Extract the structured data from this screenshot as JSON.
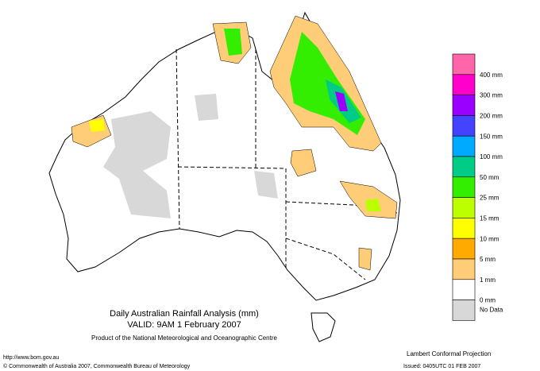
{
  "header": {
    "title": "Daily Australian Rainfall Analysis (mm)",
    "valid": "VALID: 9AM  1 February 2007",
    "product": "Product of the National Meteorological and Oceanographic Centre"
  },
  "footer": {
    "url": "http://www.bom.gov.au",
    "copyright": "© Commonwealth of Australia 2007, Commonwealth Bureau of Meteorology",
    "projection": "Lambert Conformal Projection",
    "issued": "Issued: 0405UTC 01 FEB 2007"
  },
  "legend": {
    "colors": [
      "#ff66aa",
      "#ff00cc",
      "#9900ff",
      "#4444ff",
      "#00aaff",
      "#00cc88",
      "#33ee00",
      "#bbff00",
      "#ffff00",
      "#ffaa00",
      "#ffcc77",
      "#ffffff",
      "#d8d8d8"
    ],
    "labels": [
      "400 mm",
      "300 mm",
      "200 mm",
      "150 mm",
      "100 mm",
      "50 mm",
      "25 mm",
      "15 mm",
      "10 mm",
      "5 mm",
      "1 mm",
      "0 mm",
      "No Data"
    ]
  }
}
